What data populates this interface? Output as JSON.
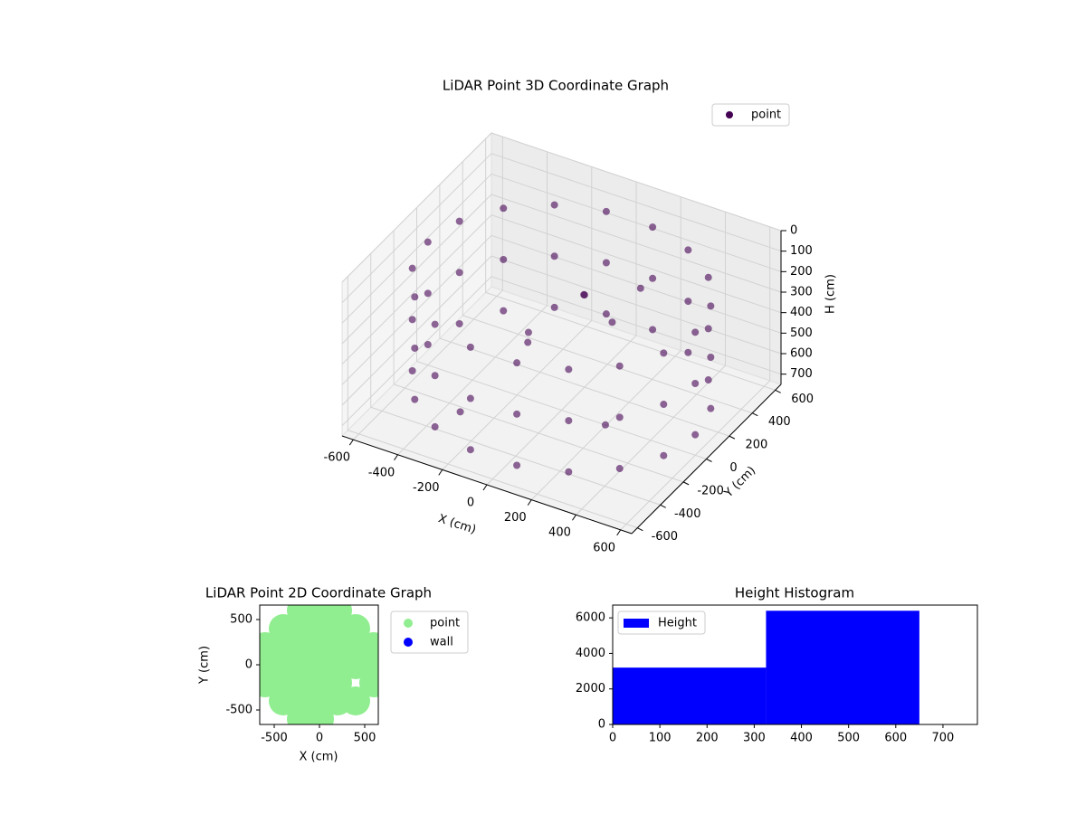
{
  "chart_data": [
    {
      "type": "scatter3d",
      "title": "LiDAR Point 3D Coordinate Graph",
      "xlabel": "X (cm)",
      "ylabel": "Y (cm)",
      "zlabel": "H (cm)",
      "xlim": [
        -650,
        650
      ],
      "ylim": [
        -650,
        650
      ],
      "zlim": [
        0,
        750
      ],
      "z_inverted": true,
      "xticks": [
        -600,
        -400,
        -200,
        0,
        200,
        400,
        600
      ],
      "yticks": [
        -600,
        -400,
        -200,
        0,
        200,
        400,
        600
      ],
      "zticks": [
        0,
        100,
        200,
        300,
        400,
        500,
        600,
        700
      ],
      "grid": true,
      "legend": "upper right",
      "series": [
        {
          "name": "point",
          "color": "#440154",
          "x": [
            600,
            564,
            460,
            300,
            104,
            -104,
            -300,
            -460,
            -564,
            -600,
            -564,
            -460,
            -300,
            -104,
            104,
            300,
            460,
            564,
            600,
            564,
            460,
            300,
            104,
            -104,
            -300,
            -460,
            -564,
            -600,
            -564,
            -460,
            -300,
            -104,
            104,
            300,
            460,
            564,
            600,
            564,
            460,
            300,
            104,
            -104,
            -300,
            -460,
            -564,
            -600,
            -564,
            -460,
            -300,
            -104,
            104,
            300,
            460,
            564,
            -200,
            0,
            100,
            -100,
            200,
            300,
            -300,
            150
          ],
          "y": [
            0,
            205,
            386,
            520,
            591,
            591,
            520,
            386,
            205,
            0,
            -205,
            -386,
            -520,
            -591,
            -591,
            -520,
            -386,
            -205,
            0,
            205,
            386,
            520,
            591,
            591,
            520,
            386,
            205,
            0,
            -205,
            -386,
            -520,
            -591,
            -591,
            -520,
            -386,
            -205,
            0,
            205,
            386,
            520,
            591,
            591,
            520,
            386,
            205,
            0,
            -205,
            -386,
            -520,
            -591,
            -591,
            -520,
            -386,
            -205,
            100,
            200,
            0,
            -100,
            300,
            -200,
            -300,
            150
          ],
          "z": [
            150,
            150,
            150,
            150,
            150,
            150,
            150,
            150,
            150,
            150,
            150,
            150,
            150,
            150,
            150,
            150,
            150,
            150,
            400,
            400,
            400,
            400,
            400,
            400,
            400,
            400,
            400,
            400,
            400,
            400,
            400,
            400,
            400,
            400,
            400,
            400,
            650,
            650,
            650,
            650,
            650,
            650,
            650,
            650,
            650,
            650,
            650,
            650,
            650,
            650,
            650,
            650,
            650,
            650,
            500,
            300,
            150,
            400,
            250,
            600,
            700,
            350
          ]
        }
      ]
    },
    {
      "type": "scatter",
      "title": "LiDAR Point 2D Coordinate Graph",
      "xlabel": "X (cm)",
      "ylabel": "Y (cm)",
      "xlim": [
        -660,
        650
      ],
      "ylim": [
        -660,
        660
      ],
      "xticks": [
        -500,
        0,
        500
      ],
      "yticks": [
        -500,
        0,
        500
      ],
      "legend": "outside right",
      "series": [
        {
          "name": "point",
          "color": "#90ee90",
          "x": [
            -200,
            0,
            200,
            -400,
            -200,
            0,
            200,
            400,
            -600,
            -400,
            -200,
            0,
            200,
            400,
            600,
            -600,
            -400,
            -200,
            0,
            200,
            400,
            600,
            -600,
            -400,
            -200,
            0,
            200,
            600,
            -400,
            -200,
            0,
            200,
            400,
            -200,
            0
          ],
          "y": [
            600,
            600,
            600,
            400,
            400,
            400,
            400,
            400,
            200,
            200,
            200,
            200,
            200,
            200,
            200,
            0,
            0,
            0,
            0,
            0,
            0,
            0,
            -200,
            -200,
            -200,
            -200,
            -200,
            -200,
            -400,
            -400,
            -400,
            -400,
            -400,
            -600,
            -600
          ]
        },
        {
          "name": "wall",
          "color": "#0000ff",
          "x": [],
          "y": []
        }
      ]
    },
    {
      "type": "histogram",
      "title": "Height Histogram",
      "bins": [
        0,
        325,
        650
      ],
      "xlim": [
        0,
        773
      ],
      "ylim": [
        0,
        6720
      ],
      "xticks": [
        0,
        100,
        200,
        300,
        400,
        500,
        600,
        700
      ],
      "yticks": [
        0,
        2000,
        4000,
        6000
      ],
      "legend": "upper left",
      "series": [
        {
          "name": "Height",
          "color": "#0000ff",
          "values": [
            3200,
            6400
          ]
        }
      ]
    }
  ]
}
